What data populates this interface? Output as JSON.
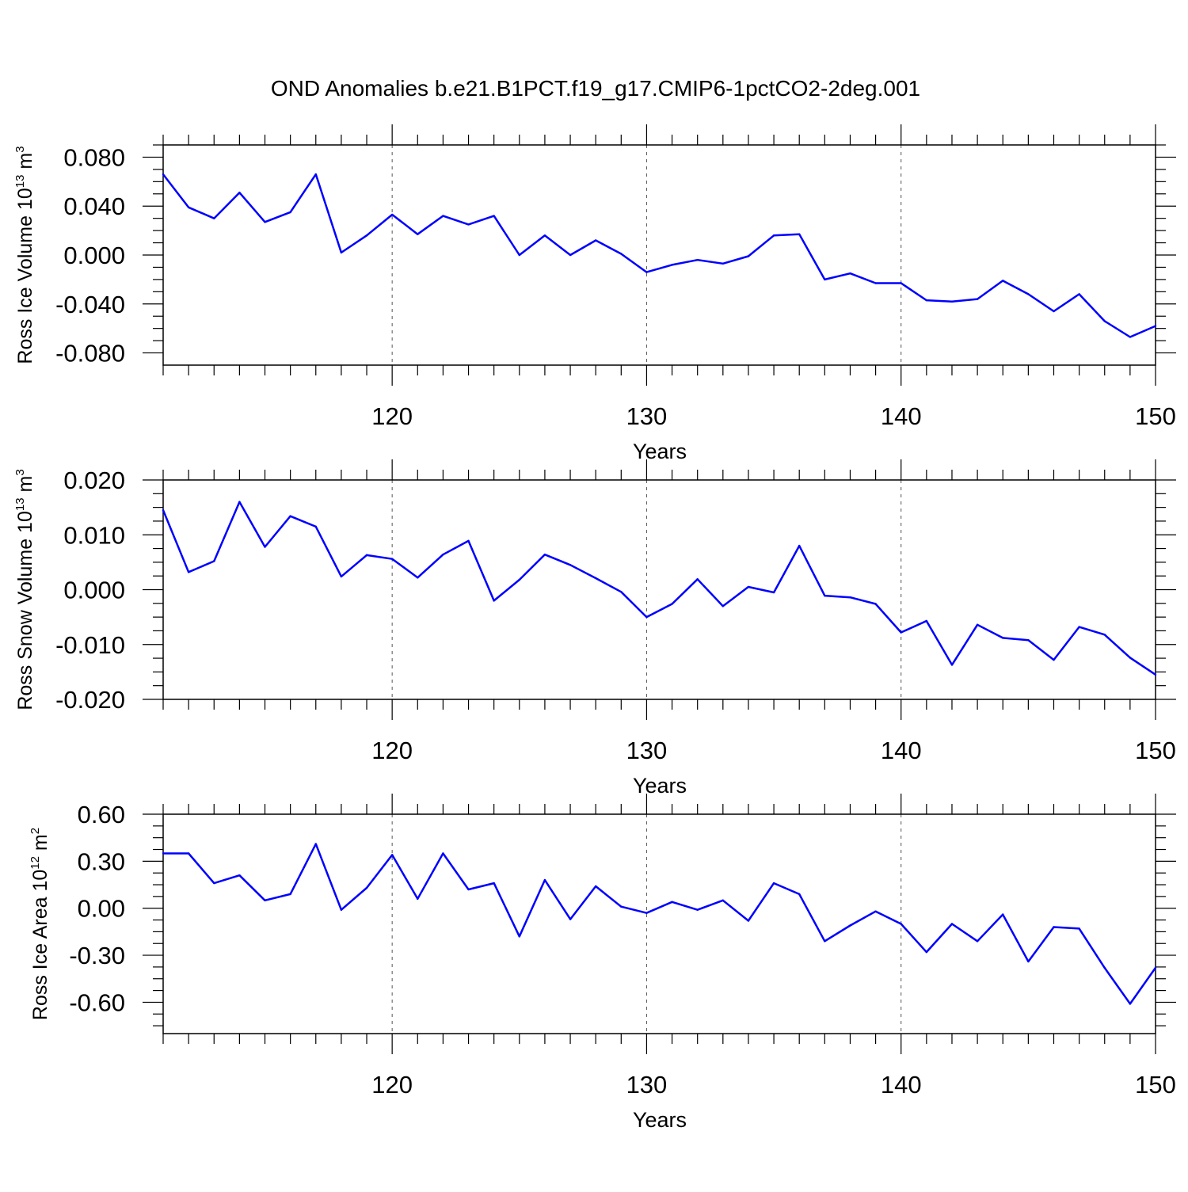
{
  "title": "OND Anomalies b.e21.B1PCT.f19_g17.CMIP6-1pctCO2-2deg.001",
  "colors": {
    "line": "#0000ff",
    "axis": "#000000",
    "grid": "#555555"
  },
  "chart_data": [
    {
      "type": "line",
      "name": "ross-ice-volume",
      "ylabel": {
        "main": "Ross Ice Volume 10",
        "exp": "13",
        "unit": " m",
        "unit_exp": "3"
      },
      "xlabel": "Years",
      "xlim": [
        111,
        150
      ],
      "ylim": [
        -0.09,
        0.09
      ],
      "xticks": [
        120,
        130,
        140,
        150
      ],
      "yticks": [
        -0.08,
        -0.04,
        0.0,
        0.04,
        0.08
      ],
      "ytick_labels": [
        "-0.080",
        "-0.040",
        "0.000",
        "0.040",
        "0.080"
      ],
      "grid_x": [
        120,
        130,
        140
      ],
      "x": [
        111,
        112,
        113,
        114,
        115,
        116,
        117,
        118,
        119,
        120,
        121,
        122,
        123,
        124,
        125,
        126,
        127,
        128,
        129,
        130,
        131,
        132,
        133,
        134,
        135,
        136,
        137,
        138,
        139,
        140,
        141,
        142,
        143,
        144,
        145,
        146,
        147,
        148,
        149,
        150
      ],
      "values": [
        0.066,
        0.039,
        0.03,
        0.051,
        0.027,
        0.035,
        0.066,
        0.002,
        0.016,
        0.033,
        0.017,
        0.032,
        0.025,
        0.032,
        0.0,
        0.016,
        0.0,
        0.012,
        0.001,
        -0.014,
        -0.008,
        -0.004,
        -0.007,
        -0.001,
        0.016,
        0.017,
        -0.02,
        -0.015,
        -0.023,
        -0.023,
        -0.037,
        -0.038,
        -0.036,
        -0.021,
        -0.032,
        -0.046,
        -0.032,
        -0.054,
        -0.067,
        -0.058
      ]
    },
    {
      "type": "line",
      "name": "ross-snow-volume",
      "ylabel": {
        "main": "Ross Snow Volume 10",
        "exp": "13",
        "unit": " m",
        "unit_exp": "3"
      },
      "xlabel": "Years",
      "xlim": [
        111,
        150
      ],
      "ylim": [
        -0.02,
        0.02
      ],
      "xticks": [
        120,
        130,
        140,
        150
      ],
      "yticks": [
        -0.02,
        -0.01,
        0.0,
        0.01,
        0.02
      ],
      "ytick_labels": [
        "-0.020",
        "-0.010",
        "0.000",
        "0.010",
        "0.020"
      ],
      "grid_x": [
        120,
        130,
        140
      ],
      "x": [
        111,
        112,
        113,
        114,
        115,
        116,
        117,
        118,
        119,
        120,
        121,
        122,
        123,
        124,
        125,
        126,
        127,
        128,
        129,
        130,
        131,
        132,
        133,
        134,
        135,
        136,
        137,
        138,
        139,
        140,
        141,
        142,
        143,
        144,
        145,
        146,
        147,
        148,
        149,
        150
      ],
      "values": [
        0.0145,
        0.0032,
        0.0052,
        0.016,
        0.0078,
        0.0134,
        0.0115,
        0.0024,
        0.0063,
        0.0056,
        0.0022,
        0.0064,
        0.0089,
        -0.002,
        0.0018,
        0.0064,
        0.0045,
        0.0021,
        -0.0004,
        -0.005,
        -0.0026,
        0.0019,
        -0.003,
        0.0005,
        -0.0005,
        0.008,
        -0.0011,
        -0.0014,
        -0.0026,
        -0.0078,
        -0.0057,
        -0.0137,
        -0.0064,
        -0.0088,
        -0.0092,
        -0.0128,
        -0.0068,
        -0.0082,
        -0.0124,
        -0.0155
      ]
    },
    {
      "type": "line",
      "name": "ross-ice-area",
      "ylabel": {
        "main": "Ross Ice Area 10",
        "exp": "12",
        "unit": " m",
        "unit_exp": "2"
      },
      "xlabel": "Years",
      "xlim": [
        111,
        150
      ],
      "ylim": [
        -0.8,
        0.6
      ],
      "xticks": [
        120,
        130,
        140,
        150
      ],
      "yticks": [
        -0.6,
        -0.3,
        0.0,
        0.3,
        0.6
      ],
      "ytick_labels": [
        "-0.60",
        "-0.30",
        "0.00",
        "0.30",
        "0.60"
      ],
      "grid_x": [
        120,
        130,
        140
      ],
      "x": [
        111,
        112,
        113,
        114,
        115,
        116,
        117,
        118,
        119,
        120,
        121,
        122,
        123,
        124,
        125,
        126,
        127,
        128,
        129,
        130,
        131,
        132,
        133,
        134,
        135,
        136,
        137,
        138,
        139,
        140,
        141,
        142,
        143,
        144,
        145,
        146,
        147,
        148,
        149,
        150
      ],
      "values": [
        0.35,
        0.35,
        0.16,
        0.21,
        0.05,
        0.09,
        0.41,
        -0.01,
        0.13,
        0.34,
        0.06,
        0.35,
        0.12,
        0.16,
        -0.18,
        0.18,
        -0.07,
        0.14,
        0.01,
        -0.03,
        0.04,
        -0.01,
        0.05,
        -0.08,
        0.16,
        0.09,
        -0.21,
        -0.11,
        -0.02,
        -0.1,
        -0.28,
        -0.1,
        -0.21,
        -0.04,
        -0.34,
        -0.12,
        -0.13,
        -0.38,
        -0.61,
        -0.38
      ]
    }
  ]
}
